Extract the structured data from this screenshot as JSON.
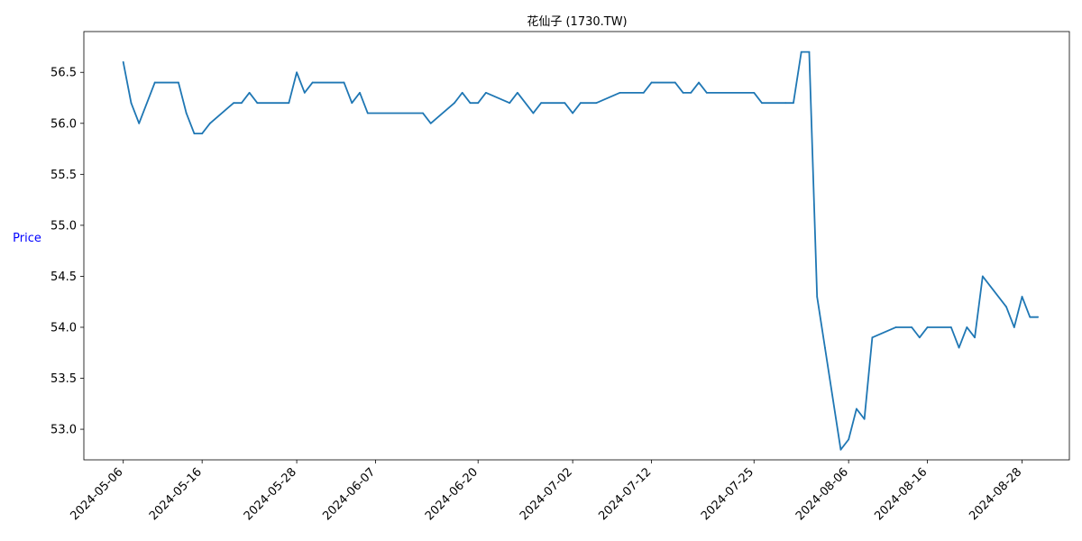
{
  "chart_data": {
    "type": "line",
    "title": "花仙子 (1730.TW)",
    "xlabel": "",
    "ylabel": "Price",
    "ylabel_color": "#0000ff",
    "line_color": "#1f77b4",
    "grid": false,
    "legend": "none",
    "ylim": [
      52.7,
      56.9
    ],
    "yticks": [
      53.0,
      53.5,
      54.0,
      54.5,
      55.0,
      55.5,
      56.0,
      56.5
    ],
    "xlim": [
      "2024-05-01",
      "2024-09-03"
    ],
    "xticks": [
      "2024-05-06",
      "2024-05-16",
      "2024-05-28",
      "2024-06-07",
      "2024-06-20",
      "2024-07-02",
      "2024-07-12",
      "2024-07-25",
      "2024-08-06",
      "2024-08-16",
      "2024-08-28"
    ],
    "series": [
      {
        "name": "",
        "points": [
          [
            "2024-05-06",
            56.6
          ],
          [
            "2024-05-07",
            56.2
          ],
          [
            "2024-05-08",
            56.0
          ],
          [
            "2024-05-10",
            56.4
          ],
          [
            "2024-05-13",
            56.4
          ],
          [
            "2024-05-14",
            56.1
          ],
          [
            "2024-05-15",
            55.9
          ],
          [
            "2024-05-16",
            55.9
          ],
          [
            "2024-05-17",
            56.0
          ],
          [
            "2024-05-20",
            56.2
          ],
          [
            "2024-05-21",
            56.2
          ],
          [
            "2024-05-22",
            56.3
          ],
          [
            "2024-05-23",
            56.2
          ],
          [
            "2024-05-27",
            56.2
          ],
          [
            "2024-05-28",
            56.5
          ],
          [
            "2024-05-29",
            56.3
          ],
          [
            "2024-05-30",
            56.4
          ],
          [
            "2024-06-03",
            56.4
          ],
          [
            "2024-06-04",
            56.2
          ],
          [
            "2024-06-05",
            56.3
          ],
          [
            "2024-06-06",
            56.1
          ],
          [
            "2024-06-13",
            56.1
          ],
          [
            "2024-06-14",
            56.0
          ],
          [
            "2024-06-17",
            56.2
          ],
          [
            "2024-06-18",
            56.3
          ],
          [
            "2024-06-19",
            56.2
          ],
          [
            "2024-06-20",
            56.2
          ],
          [
            "2024-06-21",
            56.3
          ],
          [
            "2024-06-24",
            56.2
          ],
          [
            "2024-06-25",
            56.3
          ],
          [
            "2024-06-27",
            56.1
          ],
          [
            "2024-06-28",
            56.2
          ],
          [
            "2024-07-01",
            56.2
          ],
          [
            "2024-07-02",
            56.1
          ],
          [
            "2024-07-03",
            56.2
          ],
          [
            "2024-07-05",
            56.2
          ],
          [
            "2024-07-08",
            56.3
          ],
          [
            "2024-07-11",
            56.3
          ],
          [
            "2024-07-12",
            56.4
          ],
          [
            "2024-07-15",
            56.4
          ],
          [
            "2024-07-16",
            56.3
          ],
          [
            "2024-07-17",
            56.3
          ],
          [
            "2024-07-18",
            56.4
          ],
          [
            "2024-07-19",
            56.3
          ],
          [
            "2024-07-25",
            56.3
          ],
          [
            "2024-07-26",
            56.2
          ],
          [
            "2024-07-29",
            56.2
          ],
          [
            "2024-07-30",
            56.2
          ],
          [
            "2024-07-31",
            56.7
          ],
          [
            "2024-08-01",
            56.7
          ],
          [
            "2024-08-02",
            54.3
          ],
          [
            "2024-08-03",
            53.8
          ],
          [
            "2024-08-05",
            52.8
          ],
          [
            "2024-08-06",
            52.9
          ],
          [
            "2024-08-07",
            53.2
          ],
          [
            "2024-08-08",
            53.1
          ],
          [
            "2024-08-09",
            53.9
          ],
          [
            "2024-08-12",
            54.0
          ],
          [
            "2024-08-14",
            54.0
          ],
          [
            "2024-08-15",
            53.9
          ],
          [
            "2024-08-16",
            54.0
          ],
          [
            "2024-08-19",
            54.0
          ],
          [
            "2024-08-20",
            53.8
          ],
          [
            "2024-08-21",
            54.0
          ],
          [
            "2024-08-22",
            53.9
          ],
          [
            "2024-08-23",
            54.5
          ],
          [
            "2024-08-26",
            54.2
          ],
          [
            "2024-08-27",
            54.0
          ],
          [
            "2024-08-28",
            54.3
          ],
          [
            "2024-08-29",
            54.1
          ],
          [
            "2024-08-30",
            54.1
          ]
        ]
      }
    ]
  }
}
